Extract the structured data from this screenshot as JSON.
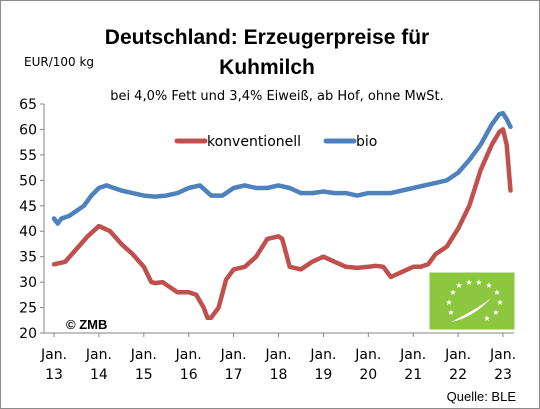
{
  "chart_data": {
    "type": "line",
    "title_line1": "Deutschland: Erzeugerpreise für",
    "title_line2": "Kuhmilch",
    "subtitle": "bei 4,0% Fett und 3,4% Eiweiß, ab Hof, ohne MwSt.",
    "ylabel": "EUR/100 kg",
    "ylim": [
      20,
      65
    ],
    "y_ticks": [
      "20",
      "25",
      "30",
      "35",
      "40",
      "45",
      "50",
      "55",
      "60",
      "65"
    ],
    "x_ticks": [
      {
        "month": "Jan.",
        "year": "13"
      },
      {
        "month": "Jan.",
        "year": "14"
      },
      {
        "month": "Jan.",
        "year": "15"
      },
      {
        "month": "Jan.",
        "year": "16"
      },
      {
        "month": "Jan.",
        "year": "17"
      },
      {
        "month": "Jan.",
        "year": "18"
      },
      {
        "month": "Jan.",
        "year": "19"
      },
      {
        "month": "Jan.",
        "year": "20"
      },
      {
        "month": "Jan.",
        "year": "21"
      },
      {
        "month": "Jan.",
        "year": "22"
      },
      {
        "month": "Jan.",
        "year": "23"
      }
    ],
    "x_start": "2013-01",
    "x_end": "2023-03",
    "legend_position": "top-left",
    "grid": false,
    "series": [
      {
        "name": "konventionell",
        "color": "#c0504d",
        "x": [
          "2013-01",
          "2013-04",
          "2013-07",
          "2013-10",
          "2014-01",
          "2014-04",
          "2014-07",
          "2014-10",
          "2015-01",
          "2015-03",
          "2015-04",
          "2015-06",
          "2015-07",
          "2015-10",
          "2016-01",
          "2016-03",
          "2016-05",
          "2016-06",
          "2016-07",
          "2016-09",
          "2016-11",
          "2017-01",
          "2017-04",
          "2017-07",
          "2017-10",
          "2018-01",
          "2018-02",
          "2018-04",
          "2018-07",
          "2018-10",
          "2019-01",
          "2019-04",
          "2019-07",
          "2019-10",
          "2020-01",
          "2020-03",
          "2020-05",
          "2020-07",
          "2020-10",
          "2021-01",
          "2021-03",
          "2021-05",
          "2021-07",
          "2021-10",
          "2022-01",
          "2022-04",
          "2022-07",
          "2022-10",
          "2022-12",
          "2023-01",
          "2023-02",
          "2023-03"
        ],
        "values": [
          33.5,
          34,
          36.5,
          39,
          41,
          40,
          37.5,
          35.5,
          33,
          30,
          29.8,
          30,
          29.5,
          28,
          28,
          27.5,
          25,
          23,
          23,
          25,
          30.5,
          32.5,
          33,
          35,
          38.5,
          39,
          38.5,
          33,
          32.5,
          34,
          35,
          34,
          33,
          32.8,
          33,
          33.2,
          33,
          31,
          32,
          33,
          33,
          33.5,
          35.5,
          37,
          40.5,
          45,
          52,
          57,
          59.5,
          60,
          57,
          48
        ]
      },
      {
        "name": "bio",
        "color": "#4f81bd",
        "x": [
          "2013-01",
          "2013-02",
          "2013-03",
          "2013-05",
          "2013-07",
          "2013-09",
          "2013-11",
          "2014-01",
          "2014-03",
          "2014-05",
          "2014-07",
          "2014-10",
          "2015-01",
          "2015-04",
          "2015-07",
          "2015-10",
          "2016-01",
          "2016-04",
          "2016-07",
          "2016-10",
          "2017-01",
          "2017-04",
          "2017-07",
          "2017-10",
          "2018-01",
          "2018-04",
          "2018-07",
          "2018-10",
          "2019-01",
          "2019-04",
          "2019-07",
          "2019-10",
          "2020-01",
          "2020-04",
          "2020-07",
          "2020-10",
          "2021-01",
          "2021-04",
          "2021-07",
          "2021-10",
          "2022-01",
          "2022-04",
          "2022-07",
          "2022-10",
          "2022-12",
          "2023-01",
          "2023-02",
          "2023-03"
        ],
        "values": [
          42.5,
          41.5,
          42.5,
          43,
          44,
          45,
          47,
          48.5,
          49,
          48.5,
          48,
          47.5,
          47,
          46.8,
          47,
          47.5,
          48.5,
          49,
          47,
          47,
          48.5,
          49,
          48.5,
          48.5,
          49,
          48.5,
          47.5,
          47.5,
          47.8,
          47.5,
          47.5,
          47,
          47.5,
          47.5,
          47.5,
          48,
          48.5,
          49,
          49.5,
          50,
          51.5,
          54,
          57,
          61,
          63,
          63.2,
          62,
          60.5
        ]
      }
    ]
  },
  "copyright": "© ZMB",
  "source": "Quelle: BLE",
  "logo": {
    "name": "eu-organic-logo",
    "color": "#8dc63f"
  }
}
